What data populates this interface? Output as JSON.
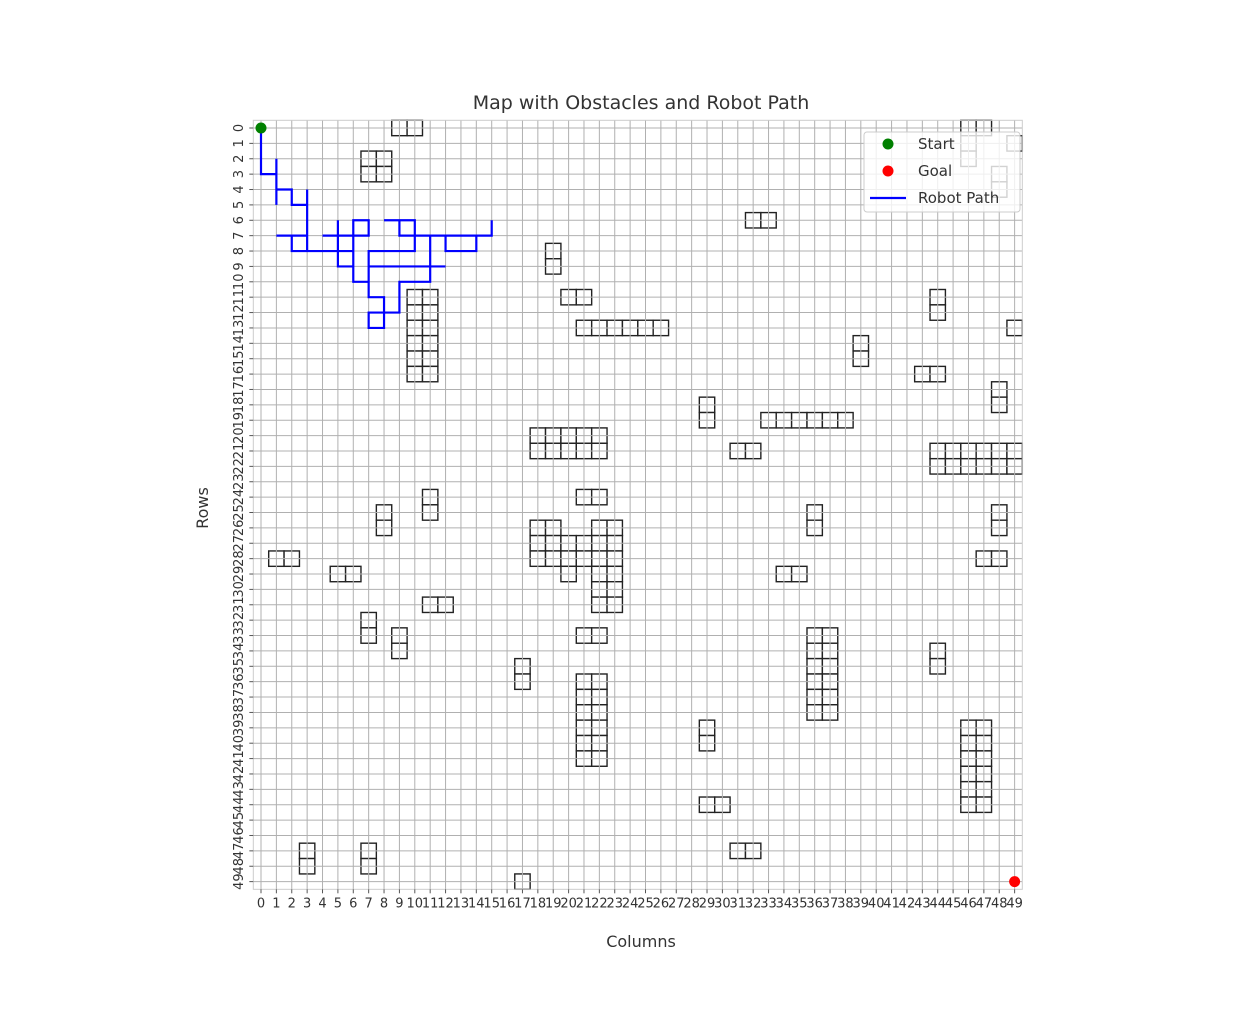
{
  "chart_data": {
    "type": "heatmap",
    "title": "Map with Obstacles and Robot Path",
    "xlabel": "Columns",
    "ylabel": "Rows",
    "grid": true,
    "grid_size": [
      50,
      50
    ],
    "legend_position": "top-right",
    "x_ticks": [
      "0",
      "1",
      "2",
      "3",
      "4",
      "5",
      "6",
      "7",
      "8",
      "9",
      "10",
      "11",
      "12",
      "13",
      "14",
      "15",
      "16",
      "17",
      "18",
      "19",
      "20",
      "21",
      "22",
      "23",
      "24",
      "25",
      "26",
      "27",
      "28",
      "29",
      "30",
      "31",
      "32",
      "33",
      "34",
      "35",
      "36",
      "37",
      "38",
      "39",
      "40",
      "41",
      "42",
      "43",
      "44",
      "45",
      "46",
      "47",
      "48",
      "49"
    ],
    "y_ticks": [
      "0",
      "1",
      "2",
      "3",
      "4",
      "5",
      "6",
      "7",
      "8",
      "9",
      "10",
      "11",
      "12",
      "13",
      "14",
      "15",
      "16",
      "17",
      "18",
      "19",
      "20",
      "21",
      "22",
      "23",
      "24",
      "25",
      "26",
      "27",
      "28",
      "29",
      "30",
      "31",
      "32",
      "33",
      "34",
      "35",
      "36",
      "37",
      "38",
      "39",
      "40",
      "41",
      "42",
      "43",
      "44",
      "45",
      "46",
      "47",
      "48",
      "49"
    ],
    "legend": [
      {
        "label": "Start",
        "kind": "marker",
        "color": "#008000"
      },
      {
        "label": "Goal",
        "kind": "marker",
        "color": "#ff0000"
      },
      {
        "label": "Robot Path",
        "kind": "line",
        "color": "#0000ff"
      }
    ],
    "start": {
      "row": 0,
      "col": 0
    },
    "goal": {
      "row": 49,
      "col": 49
    },
    "obstacles": [
      [
        0,
        9
      ],
      [
        0,
        10
      ],
      [
        2,
        7
      ],
      [
        2,
        8
      ],
      [
        3,
        7
      ],
      [
        3,
        8
      ],
      [
        6,
        32
      ],
      [
        6,
        33
      ],
      [
        8,
        19
      ],
      [
        9,
        19
      ],
      [
        11,
        20
      ],
      [
        11,
        21
      ],
      [
        11,
        10
      ],
      [
        11,
        11
      ],
      [
        12,
        10
      ],
      [
        12,
        11
      ],
      [
        13,
        10
      ],
      [
        13,
        11
      ],
      [
        14,
        10
      ],
      [
        14,
        11
      ],
      [
        15,
        10
      ],
      [
        15,
        11
      ],
      [
        16,
        10
      ],
      [
        16,
        11
      ],
      [
        11,
        44
      ],
      [
        12,
        44
      ],
      [
        13,
        49
      ],
      [
        13,
        21
      ],
      [
        13,
        22
      ],
      [
        13,
        23
      ],
      [
        13,
        24
      ],
      [
        13,
        25
      ],
      [
        13,
        26
      ],
      [
        14,
        39
      ],
      [
        15,
        39
      ],
      [
        16,
        43
      ],
      [
        16,
        44
      ],
      [
        17,
        48
      ],
      [
        18,
        48
      ],
      [
        18,
        29
      ],
      [
        19,
        29
      ],
      [
        19,
        33
      ],
      [
        19,
        34
      ],
      [
        19,
        35
      ],
      [
        19,
        36
      ],
      [
        19,
        37
      ],
      [
        19,
        38
      ],
      [
        20,
        18
      ],
      [
        20,
        19
      ],
      [
        20,
        20
      ],
      [
        20,
        21
      ],
      [
        20,
        22
      ],
      [
        21,
        18
      ],
      [
        21,
        19
      ],
      [
        21,
        20
      ],
      [
        21,
        21
      ],
      [
        21,
        22
      ],
      [
        21,
        31
      ],
      [
        21,
        32
      ],
      [
        21,
        44
      ],
      [
        21,
        45
      ],
      [
        21,
        46
      ],
      [
        21,
        47
      ],
      [
        21,
        48
      ],
      [
        21,
        49
      ],
      [
        22,
        44
      ],
      [
        22,
        45
      ],
      [
        22,
        46
      ],
      [
        22,
        47
      ],
      [
        22,
        48
      ],
      [
        22,
        49
      ],
      [
        24,
        11
      ],
      [
        25,
        11
      ],
      [
        24,
        21
      ],
      [
        24,
        22
      ],
      [
        25,
        8
      ],
      [
        26,
        8
      ],
      [
        25,
        36
      ],
      [
        26,
        36
      ],
      [
        25,
        48
      ],
      [
        26,
        48
      ],
      [
        26,
        18
      ],
      [
        26,
        19
      ],
      [
        27,
        18
      ],
      [
        27,
        19
      ],
      [
        28,
        18
      ],
      [
        28,
        19
      ],
      [
        26,
        22
      ],
      [
        26,
        23
      ],
      [
        27,
        22
      ],
      [
        27,
        23
      ],
      [
        28,
        22
      ],
      [
        28,
        23
      ],
      [
        29,
        22
      ],
      [
        29,
        23
      ],
      [
        30,
        22
      ],
      [
        30,
        23
      ],
      [
        31,
        22
      ],
      [
        31,
        23
      ],
      [
        27,
        20
      ],
      [
        27,
        21
      ],
      [
        28,
        20
      ],
      [
        28,
        21
      ],
      [
        29,
        20
      ],
      [
        28,
        1
      ],
      [
        28,
        2
      ],
      [
        28,
        47
      ],
      [
        28,
        48
      ],
      [
        29,
        5
      ],
      [
        29,
        6
      ],
      [
        29,
        34
      ],
      [
        29,
        35
      ],
      [
        31,
        11
      ],
      [
        31,
        12
      ],
      [
        32,
        7
      ],
      [
        33,
        7
      ],
      [
        33,
        9
      ],
      [
        34,
        9
      ],
      [
        33,
        21
      ],
      [
        33,
        22
      ],
      [
        33,
        36
      ],
      [
        33,
        37
      ],
      [
        34,
        36
      ],
      [
        34,
        37
      ],
      [
        35,
        36
      ],
      [
        35,
        37
      ],
      [
        36,
        36
      ],
      [
        36,
        37
      ],
      [
        37,
        36
      ],
      [
        37,
        37
      ],
      [
        38,
        36
      ],
      [
        38,
        37
      ],
      [
        34,
        44
      ],
      [
        35,
        44
      ],
      [
        35,
        17
      ],
      [
        36,
        17
      ],
      [
        36,
        21
      ],
      [
        36,
        22
      ],
      [
        37,
        21
      ],
      [
        37,
        22
      ],
      [
        38,
        21
      ],
      [
        38,
        22
      ],
      [
        39,
        21
      ],
      [
        39,
        22
      ],
      [
        40,
        21
      ],
      [
        40,
        22
      ],
      [
        41,
        21
      ],
      [
        41,
        22
      ],
      [
        39,
        29
      ],
      [
        40,
        29
      ],
      [
        39,
        46
      ],
      [
        39,
        47
      ],
      [
        40,
        46
      ],
      [
        40,
        47
      ],
      [
        41,
        46
      ],
      [
        41,
        47
      ],
      [
        42,
        46
      ],
      [
        42,
        47
      ],
      [
        43,
        46
      ],
      [
        43,
        47
      ],
      [
        44,
        46
      ],
      [
        44,
        47
      ],
      [
        44,
        29
      ],
      [
        44,
        30
      ],
      [
        47,
        3
      ],
      [
        48,
        3
      ],
      [
        47,
        7
      ],
      [
        48,
        7
      ],
      [
        47,
        31
      ],
      [
        47,
        32
      ],
      [
        49,
        17
      ]
    ],
    "legend_obscured_obstacles": [
      [
        0,
        46
      ],
      [
        0,
        47
      ],
      [
        1,
        46
      ],
      [
        2,
        46
      ],
      [
        1,
        49
      ],
      [
        3,
        48
      ],
      [
        4,
        48
      ]
    ],
    "path": [
      [
        0,
        0
      ],
      [
        3,
        0
      ],
      [
        3,
        1
      ],
      [
        2,
        1
      ],
      [
        5,
        1
      ],
      [
        4,
        1
      ],
      [
        4,
        2
      ],
      [
        5,
        2
      ],
      [
        5,
        3
      ],
      [
        4,
        3
      ],
      [
        8,
        3
      ],
      [
        7,
        3
      ],
      [
        7,
        1
      ],
      [
        7,
        2
      ],
      [
        8,
        2
      ],
      [
        8,
        3
      ],
      [
        8,
        6
      ],
      [
        9,
        6
      ],
      [
        9,
        5
      ],
      [
        6,
        5
      ],
      [
        7,
        5
      ],
      [
        7,
        4
      ],
      [
        7,
        7
      ],
      [
        6,
        7
      ],
      [
        6,
        6
      ],
      [
        10,
        6
      ],
      [
        10,
        7
      ],
      [
        9,
        7
      ],
      [
        9,
        12
      ],
      [
        9,
        11
      ],
      [
        7,
        11
      ],
      [
        7,
        13
      ],
      [
        7,
        15
      ],
      [
        6,
        15
      ],
      [
        7,
        15
      ],
      [
        7,
        14
      ],
      [
        8,
        14
      ],
      [
        8,
        12
      ],
      [
        7,
        12
      ],
      [
        7,
        9
      ],
      [
        6,
        9
      ],
      [
        6,
        8
      ],
      [
        6,
        10
      ],
      [
        8,
        10
      ],
      [
        8,
        7
      ],
      [
        11,
        7
      ],
      [
        11,
        8
      ],
      [
        13,
        8
      ],
      [
        13,
        7
      ],
      [
        12,
        7
      ],
      [
        12,
        9
      ],
      [
        10,
        9
      ],
      [
        10,
        11
      ],
      [
        9,
        11
      ]
    ]
  }
}
